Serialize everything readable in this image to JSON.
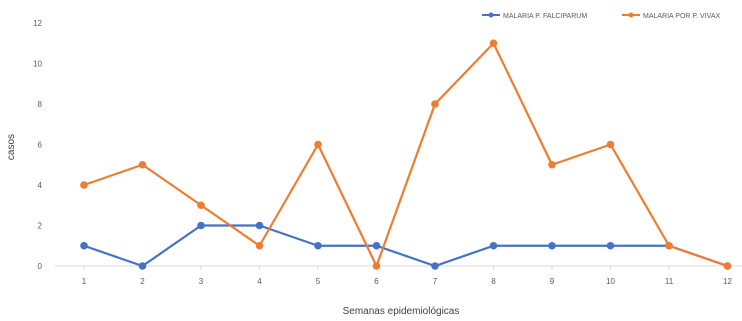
{
  "chart_data": {
    "type": "line",
    "title": "",
    "xlabel": "Semanas epidemiológicas",
    "ylabel": "casos",
    "categories": [
      "1",
      "2",
      "3",
      "4",
      "5",
      "6",
      "7",
      "8",
      "9",
      "10",
      "11",
      "12"
    ],
    "ylim": [
      0,
      12
    ],
    "yticks": [
      "0",
      "2",
      "4",
      "6",
      "8",
      "10",
      "12"
    ],
    "grid": false,
    "legend_position": "top-right",
    "series": [
      {
        "name": "MALARIA P. FALCIPARUM",
        "color": "#4472C4",
        "values": [
          1,
          0,
          2,
          2,
          1,
          1,
          0,
          1,
          1,
          1,
          1,
          0
        ]
      },
      {
        "name": "MALARIA POR P. VIVAX",
        "color": "#ED7D31",
        "values": [
          4,
          5,
          3,
          1,
          6,
          0,
          8,
          11,
          5,
          6,
          1,
          0
        ]
      }
    ]
  }
}
